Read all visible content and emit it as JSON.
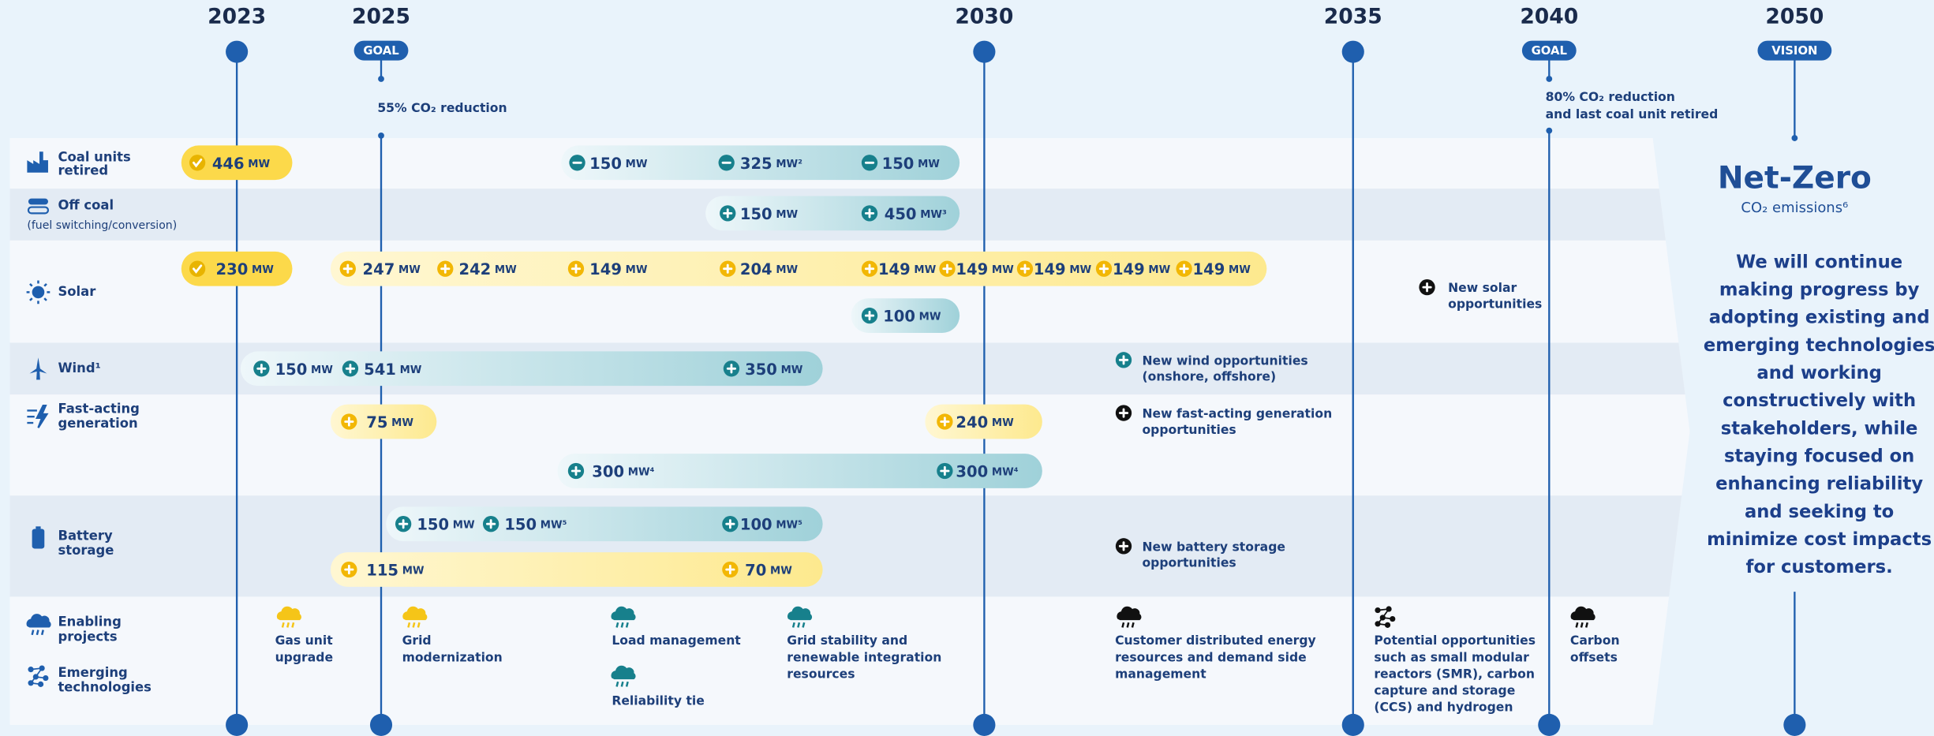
{
  "timeline": [
    {
      "year": "2023"
    },
    {
      "year": "2025",
      "badge": "GOAL",
      "note": [
        "55% CO₂ reduction"
      ]
    },
    {
      "year": "2030"
    },
    {
      "year": "2035"
    },
    {
      "year": "2040",
      "badge": "GOAL",
      "note": [
        "80% CO₂ reduction",
        "and last coal unit retired"
      ]
    },
    {
      "year": "2050",
      "badge": "VISION"
    }
  ],
  "rows": [
    {
      "label": [
        "Coal units",
        "retired"
      ]
    },
    {
      "label": [
        "Off coal"
      ],
      "detail": "(fuel switching/conversion)"
    },
    {
      "label": [
        "Solar"
      ]
    },
    {
      "label": [
        "Wind¹"
      ]
    },
    {
      "label": [
        "Fast-acting",
        "generation"
      ]
    },
    {
      "label": [
        "Battery",
        "storage"
      ]
    },
    {
      "label": [
        "Enabling",
        "projects"
      ]
    },
    {
      "label": [
        "Emerging",
        "technologies"
      ]
    }
  ],
  "bars": [
    {
      "items": [
        {
          "amount": "446",
          "unit": "MW"
        }
      ]
    },
    {
      "items": [
        {
          "amount": "150",
          "unit": "MW"
        },
        {
          "amount": "325",
          "unit": "MW²"
        },
        {
          "amount": "150",
          "unit": "MW"
        }
      ]
    },
    {
      "items": [
        {
          "amount": "150",
          "unit": "MW"
        },
        {
          "amount": "450",
          "unit": "MW³"
        }
      ]
    },
    {
      "items": [
        {
          "amount": "230",
          "unit": "MW"
        }
      ]
    },
    {
      "items": [
        {
          "amount": "247",
          "unit": "MW"
        },
        {
          "amount": "242",
          "unit": "MW"
        },
        {
          "amount": "149",
          "unit": "MW"
        },
        {
          "amount": "204",
          "unit": "MW"
        },
        {
          "amount": "149",
          "unit": "MW"
        },
        {
          "amount": "149",
          "unit": "MW"
        },
        {
          "amount": "149",
          "unit": "MW"
        },
        {
          "amount": "149",
          "unit": "MW"
        },
        {
          "amount": "149",
          "unit": "MW"
        }
      ]
    },
    {
      "items": [
        {
          "amount": "100",
          "unit": "MW"
        }
      ]
    },
    {
      "items": [
        {
          "amount": "150",
          "unit": "MW"
        },
        {
          "amount": "541",
          "unit": "MW"
        },
        {
          "amount": "350",
          "unit": "MW"
        }
      ]
    },
    {
      "items": [
        {
          "amount": "75",
          "unit": "MW"
        }
      ]
    },
    {
      "items": [
        {
          "amount": "240",
          "unit": "MW"
        }
      ]
    },
    {
      "items": [
        {
          "amount": "300",
          "unit": "MW⁴"
        },
        {
          "amount": "300",
          "unit": "MW⁴"
        }
      ]
    },
    {
      "items": [
        {
          "amount": "150",
          "unit": "MW"
        },
        {
          "amount": "150",
          "unit": "MW⁵"
        },
        {
          "amount": "100",
          "unit": "MW⁵"
        }
      ]
    },
    {
      "items": [
        {
          "amount": "115",
          "unit": "MW"
        },
        {
          "amount": "70",
          "unit": "MW"
        }
      ]
    }
  ],
  "opportunities": [
    {
      "lines": [
        "New solar",
        "opportunities"
      ]
    },
    {
      "lines": [
        "New wind opportunities",
        "(onshore, offshore)"
      ]
    },
    {
      "lines": [
        "New fast-acting generation",
        "opportunities"
      ]
    },
    {
      "lines": [
        "New battery storage",
        "opportunities"
      ]
    }
  ],
  "projects": [
    {
      "lines": [
        "Gas unit",
        "upgrade"
      ]
    },
    {
      "lines": [
        "Grid",
        "modernization"
      ]
    },
    {
      "lines": [
        "Load management"
      ]
    },
    {
      "lines": [
        "Reliability tie"
      ]
    },
    {
      "lines": [
        "Grid stability and",
        "renewable integration",
        "resources"
      ]
    },
    {
      "lines": [
        "Customer distributed energy",
        "resources and demand side",
        "management"
      ]
    },
    {
      "lines": [
        "Potential opportunities",
        "such as small modular",
        "reactors (SMR), carbon",
        "capture and storage",
        "(CCS) and hydrogen"
      ]
    },
    {
      "lines": [
        "Carbon",
        "offsets"
      ]
    }
  ],
  "vision": {
    "title": "Net-Zero",
    "subtitle": "CO₂ emissions⁶",
    "text": [
      "We will continue",
      "making progress by",
      "adopting existing and",
      "emerging technologies",
      "and working",
      "constructively with",
      "stakeholders, while",
      "staying focused on",
      "enhancing reliability",
      "and seeking to",
      "minimize cost impacts",
      "for customers."
    ]
  }
}
